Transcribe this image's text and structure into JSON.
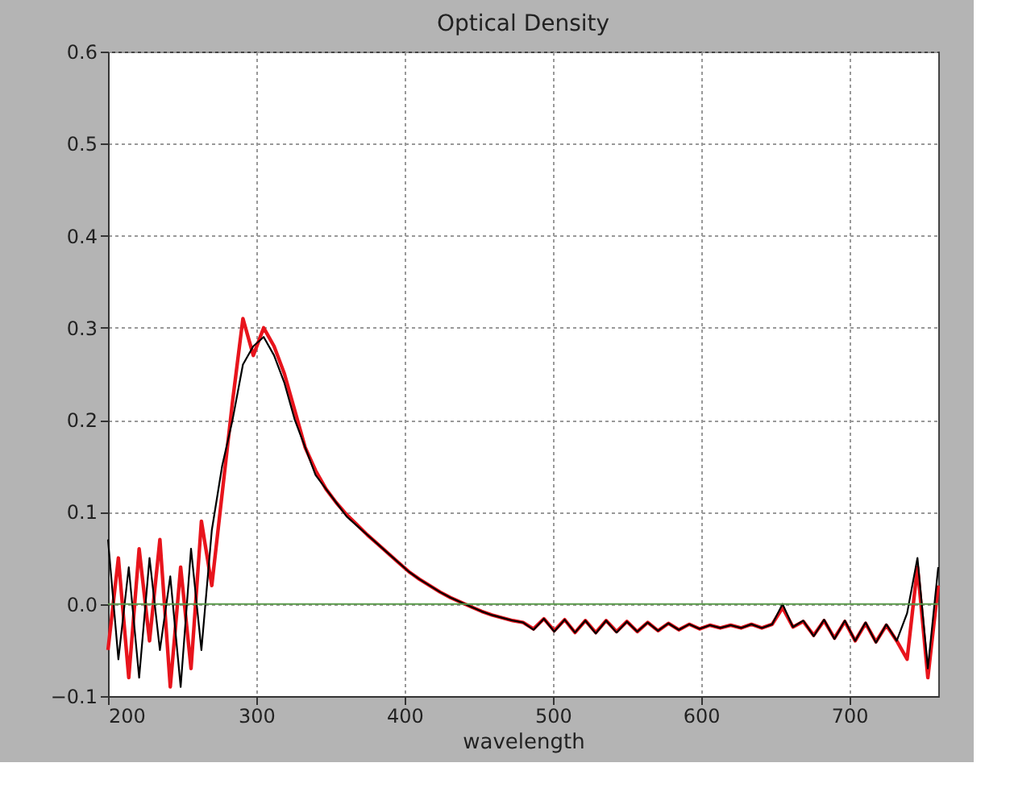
{
  "chart_data": {
    "type": "line",
    "title": "Optical Density",
    "xlabel": "wavelength",
    "x": [
      200,
      207,
      214,
      221,
      228,
      235,
      242,
      249,
      256,
      263,
      270,
      277,
      284,
      291,
      298,
      305,
      312,
      319,
      326,
      333,
      340,
      347,
      354,
      361,
      368,
      375,
      382,
      389,
      396,
      403,
      410,
      417,
      424,
      431,
      438,
      445,
      452,
      459,
      466,
      473,
      480,
      487,
      494,
      501,
      508,
      515,
      522,
      529,
      536,
      543,
      550,
      557,
      564,
      571,
      578,
      585,
      592,
      599,
      606,
      613,
      620,
      627,
      634,
      641,
      648,
      655,
      662,
      669,
      676,
      683,
      690,
      697,
      704,
      711,
      718,
      725,
      732,
      739,
      746,
      753,
      760
    ],
    "series": [
      {
        "color": "#e8141c",
        "values": [
          -0.05,
          0.05,
          -0.08,
          0.06,
          -0.04,
          0.07,
          -0.09,
          0.04,
          -0.07,
          0.09,
          0.02,
          0.12,
          0.22,
          0.31,
          0.27,
          0.3,
          0.28,
          0.25,
          0.21,
          0.17,
          0.145,
          0.125,
          0.11,
          0.097,
          0.086,
          0.075,
          0.065,
          0.055,
          0.045,
          0.035,
          0.027,
          0.02,
          0.013,
          0.007,
          0.002,
          -0.003,
          -0.008,
          -0.012,
          -0.015,
          -0.018,
          -0.02,
          -0.027,
          -0.016,
          -0.029,
          -0.017,
          -0.031,
          -0.018,
          -0.031,
          -0.018,
          -0.03,
          -0.019,
          -0.03,
          -0.02,
          -0.029,
          -0.021,
          -0.028,
          -0.022,
          -0.027,
          -0.023,
          -0.026,
          -0.023,
          -0.026,
          -0.022,
          -0.026,
          -0.022,
          -0.004,
          -0.025,
          -0.019,
          -0.034,
          -0.018,
          -0.037,
          -0.019,
          -0.04,
          -0.021,
          -0.041,
          -0.023,
          -0.04,
          -0.06,
          0.04,
          -0.08,
          0.02
        ]
      },
      {
        "color": "#000000",
        "values": [
          0.07,
          -0.06,
          0.04,
          -0.08,
          0.05,
          -0.05,
          0.03,
          -0.09,
          0.06,
          -0.05,
          0.08,
          0.15,
          0.2,
          0.26,
          0.28,
          0.29,
          0.27,
          0.24,
          0.2,
          0.17,
          0.14,
          0.125,
          0.11,
          0.095,
          0.085,
          0.075,
          0.065,
          0.055,
          0.045,
          0.035,
          0.027,
          0.02,
          0.013,
          0.007,
          0.002,
          -0.003,
          -0.008,
          -0.012,
          -0.015,
          -0.018,
          -0.02,
          -0.028,
          -0.016,
          -0.03,
          -0.017,
          -0.031,
          -0.018,
          -0.032,
          -0.018,
          -0.031,
          -0.019,
          -0.03,
          -0.02,
          -0.029,
          -0.021,
          -0.028,
          -0.022,
          -0.027,
          -0.023,
          -0.026,
          -0.023,
          -0.026,
          -0.022,
          -0.026,
          -0.022,
          0.0,
          -0.025,
          -0.018,
          -0.035,
          -0.017,
          -0.038,
          -0.018,
          -0.04,
          -0.02,
          -0.042,
          -0.022,
          -0.04,
          -0.01,
          0.05,
          -0.07,
          0.04
        ]
      }
    ],
    "xlim": [
      200,
      760
    ],
    "xticks": [
      200,
      300,
      400,
      500,
      600,
      700
    ],
    "ylim": [
      -0.1,
      0.6
    ],
    "yticks": [
      -0.1,
      {
        "value": 0,
        "label": "0.0"
      },
      0.1,
      0.2,
      0.3,
      0.4,
      0.5,
      0.6
    ],
    "ref_lines": [
      {
        "axis": "y",
        "value": 0.0,
        "color": "#5a9a4a"
      }
    ],
    "grid": true,
    "marker": "none",
    "line_style": "solid"
  }
}
